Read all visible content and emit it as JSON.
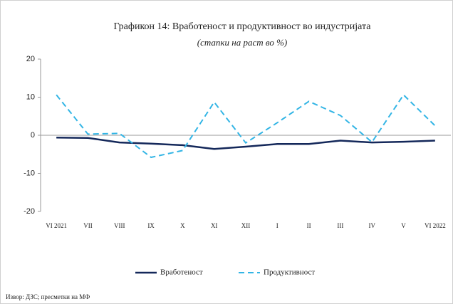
{
  "chart_data": {
    "type": "line",
    "title": "Графикон 14: Вработеност и продуктивност во индустријата",
    "subtitle": "(стапки на раст во %)",
    "categories": [
      "VI 2021",
      "VII",
      "VIII",
      "IX",
      "X",
      "XI",
      "XII",
      "I",
      "II",
      "III",
      "IV",
      "V",
      "VI 2022"
    ],
    "series": [
      {
        "name": "Вработеност",
        "color": "#14285a",
        "dash": false,
        "values": [
          -0.6,
          -0.7,
          -1.9,
          -2.2,
          -2.6,
          -3.6,
          -3.0,
          -2.3,
          -2.3,
          -1.4,
          -1.9,
          -1.7,
          -1.4
        ]
      },
      {
        "name": "Продуктивност",
        "color": "#33b5e5",
        "dash": true,
        "values": [
          10.6,
          0.3,
          0.5,
          -5.8,
          -4.0,
          8.7,
          -2.0,
          3.3,
          8.9,
          5.2,
          -1.8,
          10.6,
          2.5
        ]
      }
    ],
    "ylim": [
      -20,
      20
    ],
    "yticks": [
      -20,
      -10,
      0,
      10,
      20
    ],
    "grid": false,
    "source": "Извор: ДЗС; пресметки на МФ"
  }
}
